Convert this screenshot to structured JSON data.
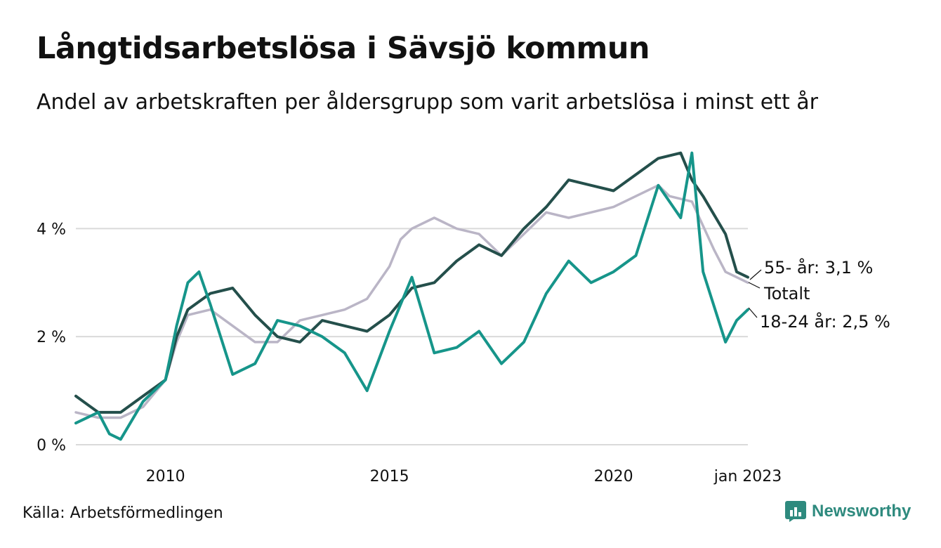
{
  "title": "Långtidsarbetslösa i Sävsjö kommun",
  "subtitle": "Andel av arbetskraften per åldersgrupp som varit arbetslösa i minst ett år",
  "source": "Källa: Arbetsförmedlingen",
  "brand": "Newsworthy",
  "colors": {
    "total": "#bab5c6",
    "age55": "#244f4b",
    "age18_24": "#16958a",
    "grid": "#dadada",
    "brand": "#2e8a7e"
  },
  "chart_data": {
    "type": "line",
    "x_start": "2008-01",
    "x_end": "2023-01",
    "x_ticks": [
      {
        "date": "2010-01",
        "label": "2010"
      },
      {
        "date": "2015-01",
        "label": "2015"
      },
      {
        "date": "2020-01",
        "label": "2020"
      },
      {
        "date": "2023-01",
        "label": "jan 2023"
      }
    ],
    "y_ticks": [
      {
        "value": 0,
        "label": "0 %"
      },
      {
        "value": 2,
        "label": "2 %"
      },
      {
        "value": 4,
        "label": "4 %"
      }
    ],
    "ylim": [
      0,
      5.5
    ],
    "grid": true,
    "series": [
      {
        "key": "total",
        "end_label": "Totalt",
        "color": "#bab5c6",
        "points": [
          [
            "2008-01",
            0.6
          ],
          [
            "2008-07",
            0.5
          ],
          [
            "2009-01",
            0.5
          ],
          [
            "2009-07",
            0.7
          ],
          [
            "2010-01",
            1.2
          ],
          [
            "2010-04",
            1.9
          ],
          [
            "2010-07",
            2.4
          ],
          [
            "2011-01",
            2.5
          ],
          [
            "2011-07",
            2.2
          ],
          [
            "2012-01",
            1.9
          ],
          [
            "2012-07",
            1.9
          ],
          [
            "2013-01",
            2.3
          ],
          [
            "2013-07",
            2.4
          ],
          [
            "2014-01",
            2.5
          ],
          [
            "2014-07",
            2.7
          ],
          [
            "2015-01",
            3.3
          ],
          [
            "2015-04",
            3.8
          ],
          [
            "2015-07",
            4.0
          ],
          [
            "2016-01",
            4.2
          ],
          [
            "2016-07",
            4.0
          ],
          [
            "2017-01",
            3.9
          ],
          [
            "2017-07",
            3.5
          ],
          [
            "2018-01",
            3.9
          ],
          [
            "2018-07",
            4.3
          ],
          [
            "2019-01",
            4.2
          ],
          [
            "2019-07",
            4.3
          ],
          [
            "2020-01",
            4.4
          ],
          [
            "2020-07",
            4.6
          ],
          [
            "2021-01",
            4.8
          ],
          [
            "2021-04",
            4.6
          ],
          [
            "2021-10",
            4.5
          ],
          [
            "2022-04",
            3.6
          ],
          [
            "2022-07",
            3.2
          ],
          [
            "2022-10",
            3.1
          ],
          [
            "2023-01",
            3.0
          ]
        ]
      },
      {
        "key": "age55",
        "end_label": "55- år: 3,1 %",
        "color": "#244f4b",
        "points": [
          [
            "2008-01",
            0.9
          ],
          [
            "2008-07",
            0.6
          ],
          [
            "2009-01",
            0.6
          ],
          [
            "2009-07",
            0.9
          ],
          [
            "2010-01",
            1.2
          ],
          [
            "2010-04",
            2.0
          ],
          [
            "2010-07",
            2.5
          ],
          [
            "2011-01",
            2.8
          ],
          [
            "2011-07",
            2.9
          ],
          [
            "2012-01",
            2.4
          ],
          [
            "2012-07",
            2.0
          ],
          [
            "2013-01",
            1.9
          ],
          [
            "2013-07",
            2.3
          ],
          [
            "2014-01",
            2.2
          ],
          [
            "2014-07",
            2.1
          ],
          [
            "2015-01",
            2.4
          ],
          [
            "2015-07",
            2.9
          ],
          [
            "2016-01",
            3.0
          ],
          [
            "2016-07",
            3.4
          ],
          [
            "2017-01",
            3.7
          ],
          [
            "2017-07",
            3.5
          ],
          [
            "2018-01",
            4.0
          ],
          [
            "2018-07",
            4.4
          ],
          [
            "2019-01",
            4.9
          ],
          [
            "2019-07",
            4.8
          ],
          [
            "2020-01",
            4.7
          ],
          [
            "2020-07",
            5.0
          ],
          [
            "2021-01",
            5.3
          ],
          [
            "2021-07",
            5.4
          ],
          [
            "2021-10",
            4.9
          ],
          [
            "2022-01",
            4.6
          ],
          [
            "2022-07",
            3.9
          ],
          [
            "2022-10",
            3.2
          ],
          [
            "2023-01",
            3.1
          ]
        ]
      },
      {
        "key": "age18_24",
        "end_label": "18-24 år: 2,5 %",
        "color": "#16958a",
        "points": [
          [
            "2008-01",
            0.4
          ],
          [
            "2008-07",
            0.6
          ],
          [
            "2008-10",
            0.2
          ],
          [
            "2009-01",
            0.1
          ],
          [
            "2009-07",
            0.8
          ],
          [
            "2010-01",
            1.2
          ],
          [
            "2010-04",
            2.2
          ],
          [
            "2010-07",
            3.0
          ],
          [
            "2010-10",
            3.2
          ],
          [
            "2011-01",
            2.6
          ],
          [
            "2011-07",
            1.3
          ],
          [
            "2012-01",
            1.5
          ],
          [
            "2012-07",
            2.3
          ],
          [
            "2013-01",
            2.2
          ],
          [
            "2013-07",
            2.0
          ],
          [
            "2014-01",
            1.7
          ],
          [
            "2014-07",
            1.0
          ],
          [
            "2015-01",
            2.1
          ],
          [
            "2015-07",
            3.1
          ],
          [
            "2016-01",
            1.7
          ],
          [
            "2016-07",
            1.8
          ],
          [
            "2017-01",
            2.1
          ],
          [
            "2017-07",
            1.5
          ],
          [
            "2018-01",
            1.9
          ],
          [
            "2018-07",
            2.8
          ],
          [
            "2019-01",
            3.4
          ],
          [
            "2019-07",
            3.0
          ],
          [
            "2020-01",
            3.2
          ],
          [
            "2020-07",
            3.5
          ],
          [
            "2021-01",
            4.8
          ],
          [
            "2021-07",
            4.2
          ],
          [
            "2021-10",
            5.4
          ],
          [
            "2022-01",
            3.2
          ],
          [
            "2022-07",
            1.9
          ],
          [
            "2022-10",
            2.3
          ],
          [
            "2023-01",
            2.5
          ]
        ]
      }
    ]
  }
}
